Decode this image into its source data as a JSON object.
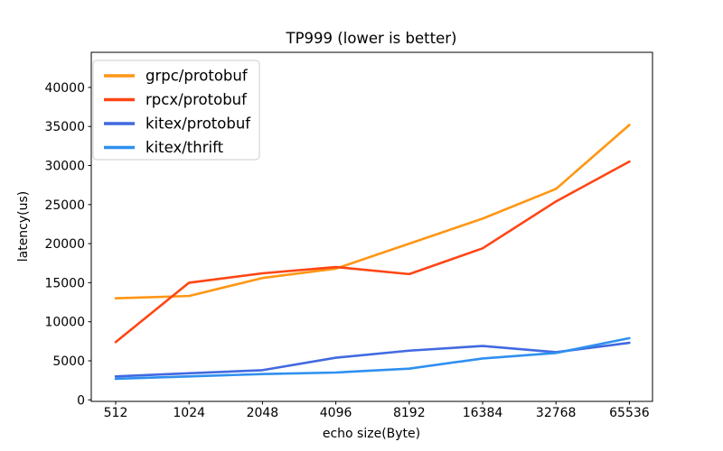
{
  "chart_data": {
    "type": "line",
    "title": "TP999 (lower is better)",
    "xlabel": "echo size(Byte)",
    "ylabel": "latency(us)",
    "categories": [
      "512",
      "1024",
      "2048",
      "4096",
      "8192",
      "16384",
      "32768",
      "65536"
    ],
    "series": [
      {
        "name": "grpc/protobuf",
        "color": "#ff9614",
        "values": [
          13000,
          13300,
          15600,
          16800,
          20000,
          23200,
          27000,
          35200
        ]
      },
      {
        "name": "rpcx/protobuf",
        "color": "#ff4514",
        "values": [
          7400,
          15000,
          16200,
          17000,
          16100,
          19400,
          25400,
          30500
        ]
      },
      {
        "name": "kitex/protobuf",
        "color": "#4169e1",
        "values": [
          3000,
          3400,
          3800,
          5400,
          6300,
          6900,
          6100,
          7300
        ]
      },
      {
        "name": "kitex/thrift",
        "color": "#2e90f0",
        "values": [
          2700,
          3000,
          3300,
          3500,
          4000,
          5300,
          6000,
          7900
        ]
      }
    ],
    "y_ticks": [
      0,
      5000,
      10000,
      15000,
      20000,
      25000,
      30000,
      35000,
      40000
    ],
    "ylim": [
      0,
      44500
    ],
    "grid": false,
    "legend_position": "upper left",
    "background_color": "#ffffff",
    "axis_color": "#000000",
    "legend_border_color": "#cccccc"
  }
}
